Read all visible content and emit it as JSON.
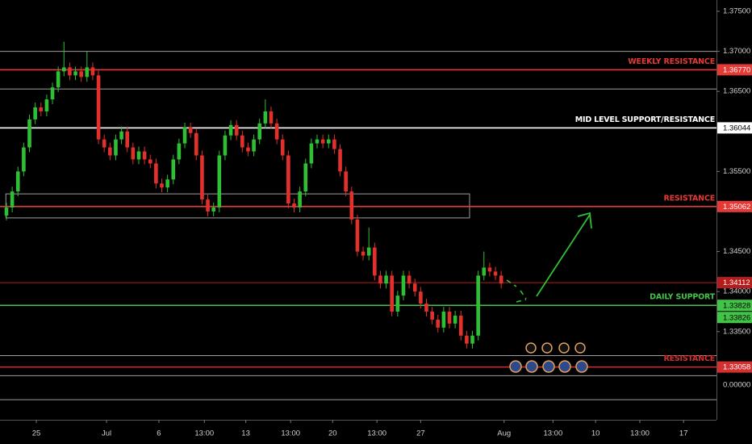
{
  "chart_data": {
    "type": "candlestick",
    "xlim": [
      -1.12,
      122.3
    ],
    "ylim": [
      1.32399,
      1.37641
    ],
    "xticks": [
      {
        "value": 5.2,
        "label": "25"
      },
      {
        "value": 17.4,
        "label": "Jul"
      },
      {
        "value": 26.5,
        "label": "6"
      },
      {
        "value": 34.4,
        "label": "13:00"
      },
      {
        "value": 41.6,
        "label": "13"
      },
      {
        "value": 49.4,
        "label": "13:00"
      },
      {
        "value": 56.7,
        "label": "20"
      },
      {
        "value": 64.4,
        "label": "13:00"
      },
      {
        "value": 72,
        "label": "27"
      },
      {
        "value": 86.5,
        "label": "Aug"
      },
      {
        "value": 95,
        "label": "13:00"
      },
      {
        "value": 102.4,
        "label": "10"
      },
      {
        "value": 110.1,
        "label": "13:00"
      },
      {
        "value": 117.7,
        "label": "17"
      }
    ],
    "yticks": [
      {
        "value": 1.375,
        "label": "1.37500"
      },
      {
        "value": 1.37,
        "label": "1.37000"
      },
      {
        "value": 1.365,
        "label": "1.36500"
      },
      {
        "value": 1.355,
        "label": "1.35500"
      },
      {
        "value": 1.345,
        "label": "1.34500"
      },
      {
        "value": 1.34,
        "label": "1.34000"
      },
      {
        "value": 1.335,
        "label": "1.33500"
      }
    ],
    "indicator_label": "0.00000",
    "up_color": "#2fbf35",
    "down_color": "#e2302c",
    "open": [
      1.3495,
      1.3505,
      1.3525,
      1.355,
      1.358,
      1.3615,
      1.363,
      1.3625,
      1.364,
      1.3655,
      1.3675,
      1.368,
      1.367,
      1.3675,
      1.3668,
      1.368,
      1.367,
      1.359,
      1.358,
      1.357,
      1.359,
      1.36,
      1.358,
      1.3565,
      1.3575,
      1.3565,
      1.356,
      1.3535,
      1.353,
      1.354,
      1.3565,
      1.3585,
      1.3605,
      1.3598,
      1.357,
      1.3515,
      1.35,
      1.3505,
      1.357,
      1.3595,
      1.3608,
      1.3595,
      1.358,
      1.3575,
      1.359,
      1.361,
      1.3625,
      1.361,
      1.359,
      1.357,
      1.351,
      1.3505,
      1.3525,
      1.356,
      1.3585,
      1.359,
      1.3585,
      1.359,
      1.3578,
      1.355,
      1.3525,
      1.349,
      1.345,
      1.3445,
      1.3455,
      1.342,
      1.341,
      1.342,
      1.3375,
      1.3395,
      1.342,
      1.341,
      1.34,
      1.3385,
      1.3375,
      1.3365,
      1.3355,
      1.3375,
      1.336,
      1.337,
      1.3345,
      1.3335,
      1.3345,
      1.342,
      1.343,
      1.3425,
      1.342
    ],
    "high": [
      1.3511,
      1.3531,
      1.3556,
      1.3586,
      1.3621,
      1.3636,
      1.3636,
      1.3646,
      1.3661,
      1.3681,
      1.3712,
      1.3686,
      1.3681,
      1.3681,
      1.37,
      1.3686,
      1.3676,
      1.3596,
      1.3586,
      1.3596,
      1.3606,
      1.3606,
      1.3586,
      1.3581,
      1.3581,
      1.3571,
      1.3566,
      1.3541,
      1.3546,
      1.3571,
      1.3591,
      1.3611,
      1.3611,
      1.3604,
      1.3576,
      1.3521,
      1.3511,
      1.3576,
      1.3601,
      1.3614,
      1.3614,
      1.3601,
      1.3586,
      1.3596,
      1.3616,
      1.364,
      1.3631,
      1.3616,
      1.3596,
      1.3576,
      1.3516,
      1.3531,
      1.3566,
      1.3591,
      1.3596,
      1.3596,
      1.3596,
      1.3596,
      1.3584,
      1.3556,
      1.3531,
      1.3496,
      1.3456,
      1.348,
      1.3461,
      1.3426,
      1.3426,
      1.3426,
      1.3401,
      1.3426,
      1.3426,
      1.3416,
      1.3406,
      1.3391,
      1.3381,
      1.3371,
      1.3381,
      1.3381,
      1.3376,
      1.3376,
      1.3351,
      1.3351,
      1.3426,
      1.345,
      1.3436,
      1.3431,
      1.3426
    ],
    "low": [
      1.3489,
      1.3499,
      1.3519,
      1.3544,
      1.3574,
      1.3609,
      1.3619,
      1.3619,
      1.3634,
      1.3649,
      1.3669,
      1.3664,
      1.3664,
      1.3662,
      1.3662,
      1.3664,
      1.3584,
      1.3574,
      1.3564,
      1.3564,
      1.3584,
      1.3574,
      1.3559,
      1.3559,
      1.3559,
      1.3554,
      1.3529,
      1.3524,
      1.3524,
      1.3534,
      1.3559,
      1.3579,
      1.3592,
      1.3564,
      1.3509,
      1.3494,
      1.3494,
      1.3499,
      1.3564,
      1.3589,
      1.3589,
      1.3574,
      1.3569,
      1.3569,
      1.3584,
      1.3604,
      1.3604,
      1.3584,
      1.3564,
      1.3504,
      1.3499,
      1.3499,
      1.3519,
      1.3554,
      1.3579,
      1.3579,
      1.3579,
      1.3572,
      1.3544,
      1.3519,
      1.3484,
      1.3444,
      1.3439,
      1.3439,
      1.3414,
      1.3404,
      1.3404,
      1.3369,
      1.3369,
      1.3389,
      1.3404,
      1.3394,
      1.3379,
      1.3369,
      1.3359,
      1.3349,
      1.3349,
      1.3354,
      1.3354,
      1.3339,
      1.3329,
      1.3329,
      1.3339,
      1.3414,
      1.3419,
      1.3414,
      1.3404
    ],
    "close": [
      1.3505,
      1.3525,
      1.355,
      1.358,
      1.3615,
      1.363,
      1.3625,
      1.364,
      1.3655,
      1.3675,
      1.368,
      1.367,
      1.3675,
      1.3668,
      1.368,
      1.367,
      1.359,
      1.358,
      1.357,
      1.359,
      1.36,
      1.358,
      1.3565,
      1.3575,
      1.3565,
      1.356,
      1.3535,
      1.353,
      1.354,
      1.3565,
      1.3585,
      1.3605,
      1.3598,
      1.357,
      1.3515,
      1.35,
      1.3505,
      1.357,
      1.3595,
      1.3608,
      1.3595,
      1.358,
      1.3575,
      1.359,
      1.361,
      1.3625,
      1.361,
      1.359,
      1.357,
      1.351,
      1.3505,
      1.3525,
      1.356,
      1.3585,
      1.359,
      1.3585,
      1.359,
      1.3578,
      1.355,
      1.3525,
      1.349,
      1.345,
      1.3445,
      1.3455,
      1.342,
      1.341,
      1.342,
      1.3375,
      1.3395,
      1.342,
      1.341,
      1.34,
      1.3385,
      1.3375,
      1.3365,
      1.3355,
      1.3375,
      1.336,
      1.337,
      1.3345,
      1.3335,
      1.3345,
      1.342,
      1.343,
      1.3425,
      1.342,
      1.341
    ],
    "zone": {
      "x": [
        -0.1,
        80.5
      ],
      "y": [
        1.3492,
        1.3522
      ],
      "color": "#9e9e9e"
    },
    "levels": [
      {
        "price": 1.37,
        "color": "#9e9e9e"
      },
      {
        "price": 1.3677,
        "color": "#e53935",
        "label": "WEEKLY RESISTANCE",
        "price_label": "1.36770"
      },
      {
        "price": 1.3653,
        "color": "#9e9e9e"
      },
      {
        "price": 1.36044,
        "color": "#ffffff",
        "label": "MID LEVEL SUPPORT/RESISTANCE",
        "price_label": "1.36044"
      },
      {
        "price": 1.35062,
        "color": "#e53935",
        "label": "RESISTANCE",
        "price_label": "1.35062"
      },
      {
        "price": 1.34112,
        "color": "#b71c1c",
        "price_label": "1.34112"
      },
      {
        "price": 1.33828,
        "color": "#43c448",
        "label": "DAILY SUPPORT",
        "price_label": "1.33828"
      },
      {
        "price": 1.33826,
        "color": "#43c448",
        "price_label": "1.33826"
      },
      {
        "price": 1.332,
        "color": "#9e9e9e"
      },
      {
        "price": 1.33058,
        "color": "#d32f2f",
        "label": "RESISTANCE",
        "price_label": "1.33058"
      },
      {
        "price": 1.3295,
        "color": "#9e9e9e"
      },
      {
        "price": 1.3265,
        "color": "#9e9e9e"
      }
    ]
  }
}
